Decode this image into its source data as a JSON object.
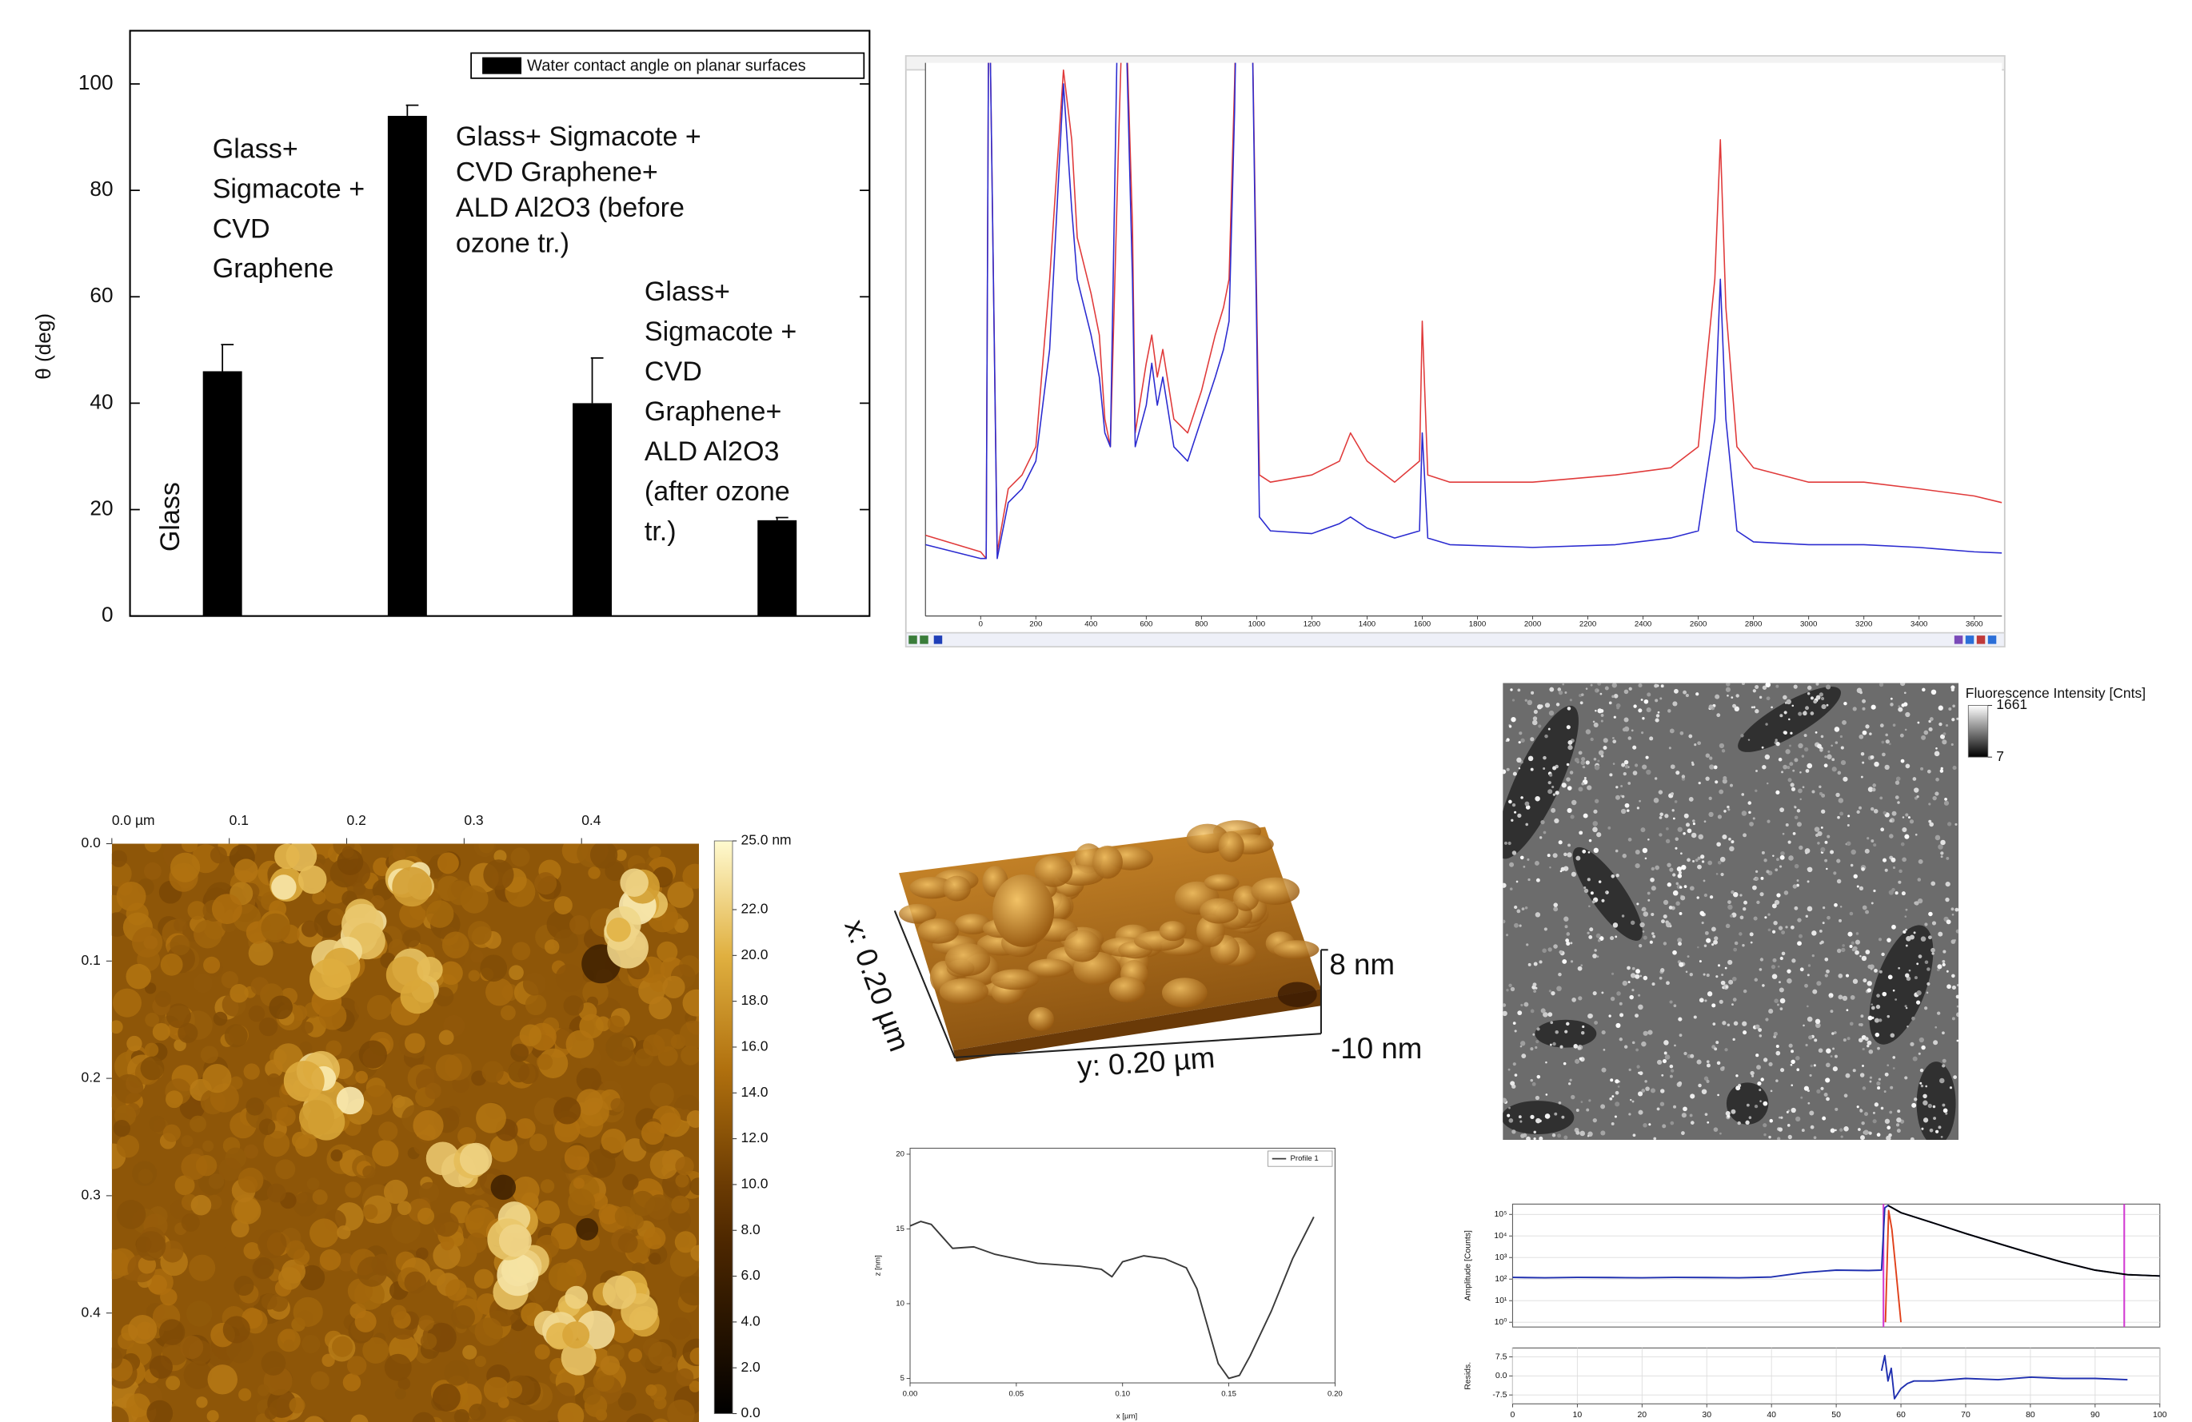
{
  "chart_data": [
    {
      "type": "bar",
      "ylabel": "θ (deg)",
      "categories": [
        null,
        null,
        null,
        null
      ],
      "series": [
        {
          "name": "Water contact angle on planar surfaces",
          "color": "#000000",
          "values": [
            46,
            94,
            40,
            18
          ],
          "errors": [
            5,
            2,
            8.5,
            0.5
          ]
        }
      ],
      "ylim": [
        0,
        110
      ],
      "yticks": [
        0,
        20,
        40,
        60,
        80,
        100
      ],
      "legend": "upper right",
      "annotations": [
        [
          "Glass"
        ],
        [
          "Glass+",
          "Sigmacote +",
          "CVD",
          "Graphene"
        ],
        [
          "Glass+ Sigmacote +",
          "CVD Graphene+",
          "ALD Al2O3 (before",
          "ozone tr.)"
        ],
        [
          "Glass+",
          "Sigmacote +",
          "CVD",
          "Graphene+",
          "ALD Al2O3",
          "(after ozone",
          "tr.)"
        ]
      ]
    },
    {
      "type": "line",
      "x": [
        -200,
        0,
        20,
        30,
        60,
        100,
        150,
        200,
        250,
        300,
        330,
        350,
        400,
        430,
        450,
        470,
        500,
        520,
        550,
        560,
        600,
        620,
        640,
        660,
        700,
        750,
        800,
        850,
        880,
        900,
        920,
        930,
        980,
        1010,
        1050,
        1200,
        1300,
        1340,
        1400,
        1500,
        1590,
        1600,
        1620,
        1700,
        2000,
        2300,
        2500,
        2600,
        2660,
        2680,
        2700,
        2740,
        2800,
        3000,
        3200,
        3400,
        3600,
        3700
      ],
      "series": [
        {
          "color": "#e03a3a",
          "values": [
            14.6,
            11.6,
            10.4,
            120,
            11.6,
            23,
            25.5,
            30.6,
            60.9,
            98.7,
            86.1,
            68.4,
            58.3,
            50.8,
            35.6,
            30.6,
            86.1,
            120,
            70.7,
            33.1,
            45.7,
            50.8,
            43.2,
            48.2,
            35.6,
            33.1,
            40.7,
            50.8,
            55.8,
            60.9,
            96.2,
            120,
            120,
            25.5,
            24.2,
            25.5,
            28,
            33.1,
            28,
            24.2,
            28,
            53.3,
            25.5,
            24.2,
            24.2,
            25.5,
            26.8,
            30.6,
            60.9,
            86.1,
            55.8,
            30.6,
            26.8,
            24.2,
            24.2,
            23,
            21.7,
            20.5
          ]
        },
        {
          "color": "#2b2bd0",
          "values": [
            12.9,
            10.4,
            10.4,
            120,
            10.4,
            20.5,
            23,
            28,
            48.2,
            96.2,
            73.5,
            60.9,
            50.8,
            43.2,
            33.1,
            30.6,
            120,
            120,
            60.9,
            30.6,
            38.1,
            45.7,
            38.1,
            43.2,
            30.6,
            28,
            35.6,
            43.2,
            48.2,
            53.3,
            91.2,
            120,
            120,
            17.9,
            15.4,
            14.9,
            16.7,
            17.9,
            15.9,
            14.1,
            15.4,
            33.1,
            14.1,
            12.9,
            12.4,
            12.9,
            14.1,
            15.4,
            35.6,
            60.9,
            35.6,
            15.4,
            13.4,
            12.9,
            12.9,
            12.4,
            11.6,
            11.4
          ]
        }
      ],
      "xlim": [
        -200,
        3700
      ],
      "xticks": [
        0,
        200,
        400,
        600,
        800,
        1000,
        1200,
        1400,
        1600,
        1800,
        2000,
        2200,
        2400,
        2600,
        2800,
        3000,
        3200,
        3400,
        3600
      ],
      "ylim": [
        0,
        100
      ]
    },
    {
      "type": "heatmap",
      "colormap": "afmhot",
      "xlim": [
        0,
        0.5
      ],
      "ylim": [
        0,
        0.5
      ],
      "xticks": [
        {
          "value": 0,
          "label": "0.0 µm"
        },
        0.1,
        0.2,
        0.3,
        0.4
      ],
      "yticks": [
        {
          "value": 0,
          "label": "0.0"
        },
        0.1,
        0.2,
        0.3,
        0.4
      ],
      "colorbar_lim": [
        0,
        25
      ],
      "colorbar_ticks": [
        {
          "value": 25,
          "label": "25.0 nm"
        },
        {
          "value": 22,
          "label": "22.0"
        },
        {
          "value": 20,
          "label": "20.0"
        },
        {
          "value": 18,
          "label": "18.0"
        },
        {
          "value": 16,
          "label": "16.0"
        },
        {
          "value": 14,
          "label": "14.0"
        },
        {
          "value": 12,
          "label": "12.0"
        },
        {
          "value": 10,
          "label": "10.0"
        },
        {
          "value": 8,
          "label": "8.0"
        },
        {
          "value": 6,
          "label": "6.0"
        },
        {
          "value": 4,
          "label": "4.0"
        },
        {
          "value": 2,
          "label": "2.0"
        },
        {
          "value": 0,
          "label": "0.0"
        }
      ]
    },
    {
      "type": "surface3d",
      "xlabel": "x: 0.20 µm",
      "ylabel": "y: 0.20 µm",
      "zlabels": [
        "8 nm",
        "-10 nm"
      ]
    },
    {
      "type": "line",
      "xlabel": "x [µm]",
      "ylabel": "z [nm]",
      "x": [
        0,
        0.005,
        0.01,
        0.015,
        0.02,
        0.03,
        0.04,
        0.05,
        0.06,
        0.07,
        0.08,
        0.09,
        0.095,
        0.1,
        0.11,
        0.12,
        0.13,
        0.135,
        0.14,
        0.145,
        0.15,
        0.155,
        0.16,
        0.17,
        0.18,
        0.19
      ],
      "series": [
        {
          "name": "Profile 1",
          "color": "#3a3a3a",
          "values": [
            15.2,
            15.5,
            15.3,
            14.5,
            13.7,
            13.8,
            13.3,
            13.0,
            12.7,
            12.6,
            12.5,
            12.3,
            11.8,
            12.8,
            13.2,
            13.0,
            12.4,
            11.0,
            8.5,
            6.0,
            5.0,
            5.2,
            6.5,
            9.5,
            13.0,
            15.8
          ]
        }
      ],
      "xlim": [
        0,
        0.2
      ],
      "xticks": [
        {
          "value": 0,
          "label": "0.00"
        },
        {
          "value": 0.05,
          "label": "0.05"
        },
        {
          "value": 0.1,
          "label": "0.10"
        },
        {
          "value": 0.15,
          "label": "0.15"
        },
        {
          "value": 0.2,
          "label": "0.20"
        }
      ],
      "ylim": [
        4.7,
        20.4
      ],
      "yticks": [
        5,
        10,
        15,
        20
      ],
      "legend": "upper right"
    },
    {
      "type": "heatmap",
      "colormap": "gray",
      "colorbar_title": "Fluorescence Intensity [Cnts]",
      "colorbar_lim": [
        7,
        1661
      ],
      "colorbar_ticks": [
        1661,
        7
      ]
    },
    {
      "type": "line",
      "log_y": true,
      "ylabel": "Amplitude [Counts]",
      "grid": true,
      "series": [
        {
          "color": "#2030b0",
          "x": [
            0,
            5,
            10,
            15,
            20,
            25,
            30,
            35,
            40,
            45,
            50,
            55,
            57,
            57.5,
            58,
            60,
            65,
            70,
            75,
            80,
            85,
            90,
            95,
            100
          ],
          "values": [
            120,
            115,
            120,
            118,
            115,
            120,
            118,
            115,
            125,
            200,
            260,
            250,
            260,
            200000,
            260000,
            120000,
            40000,
            13000,
            4500,
            1600,
            600,
            260,
            160,
            140
          ]
        },
        {
          "color": "#000000",
          "x": [
            58,
            60,
            65,
            70,
            75,
            80,
            85,
            90,
            95,
            100
          ],
          "values": [
            260000,
            120000,
            40000,
            13000,
            4500,
            1600,
            600,
            260,
            160,
            140
          ]
        },
        {
          "color": "#e0401a",
          "x": [
            57.6,
            58.1,
            58.6,
            59.2,
            60
          ],
          "values": [
            1,
            150000,
            20000,
            300,
            1
          ]
        }
      ],
      "xlim": [
        0,
        100
      ],
      "ylim": [
        0.6,
        300000
      ],
      "yticks": [
        {
          "value": 1,
          "label": "10⁰"
        },
        {
          "value": 10,
          "label": "10¹"
        },
        {
          "value": 100,
          "label": "10²"
        },
        {
          "value": 1000,
          "label": "10³"
        },
        {
          "value": 10000,
          "label": "10⁴"
        },
        {
          "value": 100000,
          "label": "10⁵"
        }
      ],
      "markers": [
        57.3,
        94.5
      ],
      "marker_color": "#d23cd2"
    },
    {
      "type": "line",
      "ylabel": "Resids.",
      "grid": true,
      "series": [
        {
          "color": "#2030b0",
          "x": [
            57,
            57.5,
            58,
            58.5,
            59,
            60,
            61,
            62,
            65,
            70,
            75,
            80,
            85,
            90,
            95
          ],
          "values": [
            2,
            8,
            -2,
            3,
            -9,
            -5,
            -3,
            -2,
            -2,
            -1,
            -1.5,
            -0.5,
            -1,
            -1,
            -1.5
          ]
        }
      ],
      "xlim": [
        0,
        100
      ],
      "xticks": [
        0,
        10,
        20,
        30,
        40,
        50,
        60,
        70,
        80,
        90,
        100
      ],
      "ylim": [
        -11,
        11
      ],
      "yticks": [
        -7.5,
        {
          "value": 0,
          "label": "0.0"
        },
        7.5
      ]
    }
  ]
}
